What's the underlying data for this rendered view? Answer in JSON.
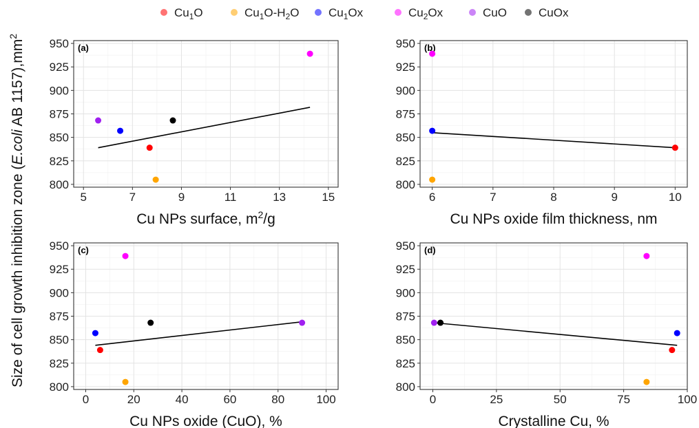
{
  "legend": [
    {
      "name": "Cu1O",
      "base": "Cu",
      "sub": "1",
      "rest": "O",
      "color": "#ff0000"
    },
    {
      "name": "Cu1O-H2O",
      "base": "Cu",
      "sub": "1",
      "rest": "O-H",
      "sub2": "2",
      "rest2": "O",
      "color": "#ffa500"
    },
    {
      "name": "Cu1Ox",
      "base": "Cu",
      "sub": "1",
      "rest": "Ox",
      "color": "#0000ff"
    },
    {
      "name": "Cu2Ox",
      "base": "Cu",
      "sub": "2",
      "rest": "Ox",
      "color": "#ff00ff"
    },
    {
      "name": "CuO",
      "base": "CuO",
      "sub": "",
      "rest": "",
      "color": "#a020f0"
    },
    {
      "name": "CuOx",
      "base": "CuOx",
      "sub": "",
      "rest": "",
      "color": "#000000"
    }
  ],
  "ylabel": {
    "pre": "Size of cell growth inhibition zone (",
    "italic": "E.coli",
    "post": " AB 1157),mm",
    "sup": "2"
  },
  "chart_data": [
    {
      "type": "scatter",
      "tag": "(a)",
      "xlabel": "Cu NPs surface, m",
      "xlabel_sup": "2",
      "xlabel_post": "/g",
      "xlim": [
        4.6,
        15.4
      ],
      "ylim": [
        797,
        953
      ],
      "xticks": [
        5,
        7,
        9,
        11,
        13,
        15
      ],
      "yticks": [
        800,
        825,
        850,
        875,
        900,
        925,
        950
      ],
      "grid": true,
      "points": [
        {
          "series": "Cu1O",
          "x": 7.7,
          "y": 839
        },
        {
          "series": "Cu1O-H2O",
          "x": 7.95,
          "y": 805
        },
        {
          "series": "Cu1Ox",
          "x": 6.5,
          "y": 857
        },
        {
          "series": "Cu2Ox",
          "x": 14.25,
          "y": 939
        },
        {
          "series": "CuO",
          "x": 5.6,
          "y": 868
        },
        {
          "series": "CuOx",
          "x": 8.65,
          "y": 868
        }
      ],
      "fit": {
        "x": [
          5.6,
          14.25
        ],
        "y": [
          839,
          882
        ]
      }
    },
    {
      "type": "scatter",
      "tag": "(b)",
      "xlabel": "Cu NPs oxide film thickness, nm",
      "xlabel_sup": "",
      "xlabel_post": "",
      "xlim": [
        5.8,
        10.2
      ],
      "ylim": [
        797,
        953
      ],
      "xticks": [
        6,
        7,
        8,
        9,
        10
      ],
      "yticks": [
        800,
        825,
        850,
        875,
        900,
        925,
        950
      ],
      "grid": true,
      "points": [
        {
          "series": "Cu1O",
          "x": 10,
          "y": 839
        },
        {
          "series": "Cu1O-H2O",
          "x": 6,
          "y": 805
        },
        {
          "series": "Cu1Ox",
          "x": 6,
          "y": 857
        },
        {
          "series": "Cu2Ox",
          "x": 6,
          "y": 939
        }
      ],
      "fit": {
        "x": [
          6,
          10
        ],
        "y": [
          855,
          839
        ]
      }
    },
    {
      "type": "scatter",
      "tag": "(c)",
      "xlabel": "Cu NPs oxide (CuO), %",
      "xlabel_sup": "",
      "xlabel_post": "",
      "xlim": [
        -5,
        105
      ],
      "ylim": [
        797,
        953
      ],
      "xticks": [
        0,
        20,
        40,
        60,
        80,
        100
      ],
      "yticks": [
        800,
        825,
        850,
        875,
        900,
        925,
        950
      ],
      "grid": true,
      "points": [
        {
          "series": "Cu1O",
          "x": 6,
          "y": 839
        },
        {
          "series": "Cu1O-H2O",
          "x": 16.5,
          "y": 805
        },
        {
          "series": "Cu1Ox",
          "x": 4,
          "y": 857
        },
        {
          "series": "Cu2Ox",
          "x": 16.5,
          "y": 939
        },
        {
          "series": "CuO",
          "x": 90,
          "y": 868
        },
        {
          "series": "CuOx",
          "x": 27,
          "y": 868
        }
      ],
      "fit": {
        "x": [
          4,
          90
        ],
        "y": [
          844,
          869
        ]
      }
    },
    {
      "type": "scatter",
      "tag": "(d)",
      "xlabel": "Crystalline Cu, %",
      "xlabel_sup": "",
      "xlabel_post": "",
      "xlim": [
        -5,
        100
      ],
      "ylim": [
        797,
        953
      ],
      "xticks": [
        0,
        25,
        50,
        75,
        100
      ],
      "yticks": [
        800,
        825,
        850,
        875,
        900,
        925,
        950
      ],
      "grid": true,
      "points": [
        {
          "series": "Cu1O",
          "x": 94,
          "y": 839
        },
        {
          "series": "Cu1O-H2O",
          "x": 84,
          "y": 805
        },
        {
          "series": "Cu1Ox",
          "x": 96,
          "y": 857
        },
        {
          "series": "Cu2Ox",
          "x": 84,
          "y": 939
        },
        {
          "series": "CuO",
          "x": 0.5,
          "y": 868
        },
        {
          "series": "CuOx",
          "x": 3,
          "y": 868
        }
      ],
      "fit": {
        "x": [
          0.5,
          96
        ],
        "y": [
          868,
          844
        ]
      }
    }
  ]
}
